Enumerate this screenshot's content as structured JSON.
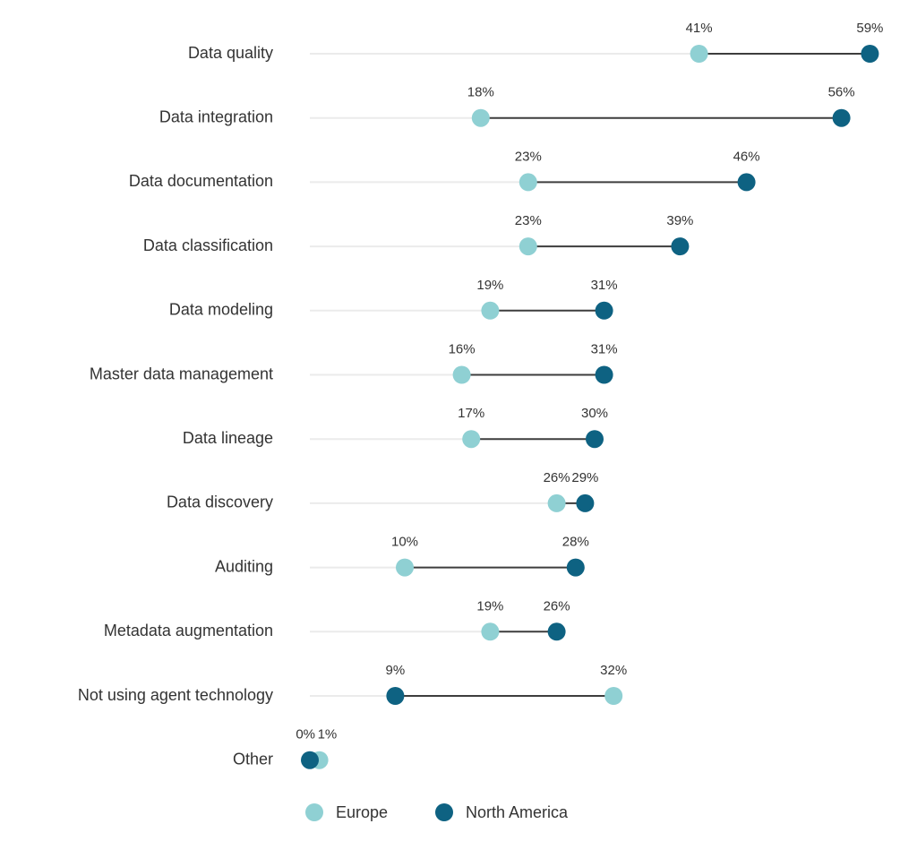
{
  "chart_data": {
    "type": "dumbbell",
    "categories": [
      "Data quality",
      "Data integration",
      "Data documentation",
      "Data classification",
      "Data modeling",
      "Master data management",
      "Data lineage",
      "Data discovery",
      "Auditing",
      "Metadata augmentation",
      "Not using agent technology",
      "Other"
    ],
    "series": [
      {
        "name": "Europe",
        "color": "#8fd0d3",
        "values": [
          41,
          18,
          23,
          23,
          19,
          16,
          17,
          26,
          10,
          19,
          32,
          1
        ],
        "value_labels": [
          "41%",
          "18%",
          "23%",
          "23%",
          "19%",
          "16%",
          "17%",
          "26%",
          "10%",
          "19%",
          "32%",
          "1%"
        ]
      },
      {
        "name": "North America",
        "color": "#0e6282",
        "values": [
          59,
          56,
          46,
          39,
          31,
          31,
          30,
          29,
          28,
          26,
          9,
          0
        ],
        "value_labels": [
          "59%",
          "56%",
          "46%",
          "39%",
          "31%",
          "31%",
          "30%",
          "29%",
          "28%",
          "26%",
          "9%",
          "0%"
        ]
      }
    ],
    "xlim": [
      0,
      60
    ],
    "legend": "bottom"
  }
}
